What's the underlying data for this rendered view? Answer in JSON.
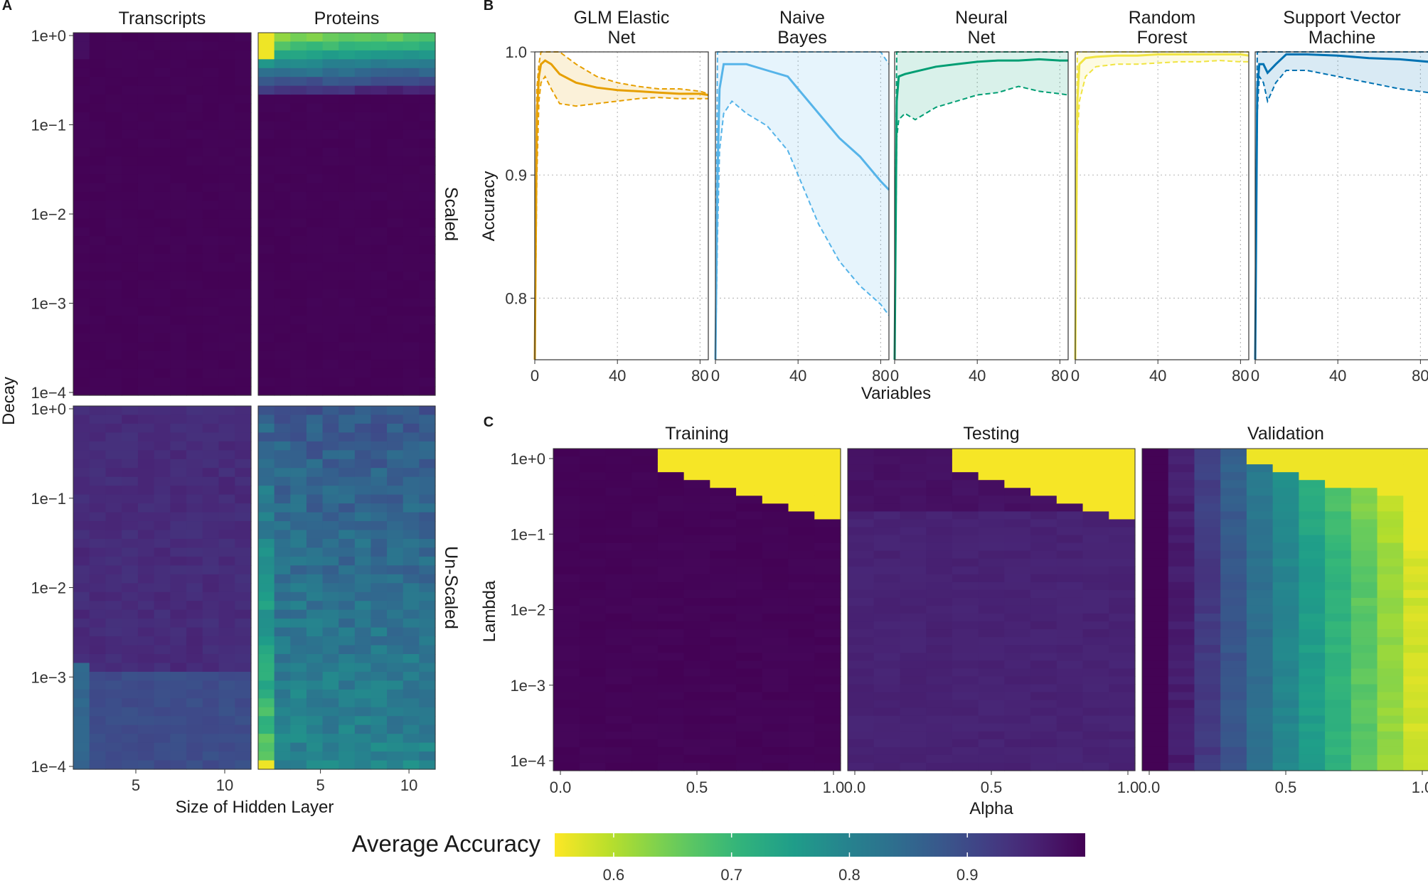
{
  "chart_data": [
    {
      "panel": "A",
      "type": "heatmap",
      "xlabel": "Size of Hidden Layer",
      "ylabel": "Decay",
      "column_facets": [
        "Transcripts",
        "Proteins"
      ],
      "row_facets": [
        "Scaled",
        "Un-Scaled"
      ],
      "x_ticks": [
        "5",
        "10"
      ],
      "x_range": [
        1,
        11
      ],
      "y_ticks": [
        "1e+0",
        "1e−1",
        "1e−2",
        "1e−3",
        "1e−4"
      ],
      "y_scale": "log10",
      "y_range": [
        0.0001,
        1
      ],
      "grid": "11 hidden-layer sizes x 41 decay values",
      "summary": {
        "Transcripts/Scaled": "accuracy ~1.0 throughout (darkest)",
        "Proteins/Scaled": "accuracy ~0.6-0.75 at decay 0.3-1 with small hidden layers, ~1.0 below decay 0.1",
        "Transcripts/Un-Scaled": "accuracy ~0.93-0.96, ~0.88-0.9 below decay 1e-3",
        "Proteins/Un-Scaled": "accuracy ~0.75-0.9, lowest (~0.6) at hidden size 1 and decay 1e-4"
      }
    },
    {
      "panel": "B",
      "type": "line",
      "xlabel": "Variables",
      "ylabel": "Accuracy",
      "x_ticks": [
        "0",
        "40",
        "80"
      ],
      "y_ticks": [
        "0.8",
        "0.9",
        "1.0"
      ],
      "xlim": [
        0,
        84
      ],
      "ylim": [
        0.75,
        1.0
      ],
      "grid": true,
      "series_style": "solid line = mean accuracy, dashed line = lower bound, shaded band between",
      "series": [
        {
          "name": "GLM Elastic\nNet",
          "color": "#E69F00",
          "x": [
            0,
            1,
            2,
            3,
            5,
            8,
            12,
            20,
            30,
            40,
            50,
            60,
            70,
            80,
            84
          ],
          "mean": [
            0.75,
            0.95,
            0.98,
            0.99,
            0.993,
            0.99,
            0.982,
            0.975,
            0.971,
            0.969,
            0.968,
            0.967,
            0.966,
            0.966,
            0.965
          ],
          "lower": [
            0.75,
            0.9,
            0.96,
            0.975,
            0.98,
            0.97,
            0.958,
            0.956,
            0.958,
            0.96,
            0.962,
            0.963,
            0.962,
            0.962,
            0.962
          ],
          "upper": [
            0.75,
            0.97,
            0.99,
            1.0,
            1.0,
            1.0,
            1.0,
            0.99,
            0.98,
            0.975,
            0.972,
            0.97,
            0.97,
            0.968,
            0.966
          ]
        },
        {
          "name": "Naive\nBayes",
          "color": "#56B4E9",
          "x": [
            0,
            1,
            2,
            4,
            8,
            15,
            25,
            35,
            40,
            50,
            60,
            70,
            80,
            84
          ],
          "mean": [
            0.75,
            0.9,
            0.97,
            0.99,
            0.99,
            0.99,
            0.985,
            0.98,
            0.97,
            0.95,
            0.93,
            0.915,
            0.895,
            0.888
          ],
          "lower": [
            0.75,
            0.85,
            0.92,
            0.95,
            0.96,
            0.95,
            0.94,
            0.92,
            0.9,
            0.86,
            0.83,
            0.81,
            0.795,
            0.786
          ],
          "upper": [
            0.75,
            1.0,
            1.0,
            1.0,
            1.0,
            1.0,
            1.0,
            1.0,
            1.0,
            1.0,
            1.0,
            1.0,
            1.0,
            0.99
          ]
        },
        {
          "name": "Neural\nNet",
          "color": "#009E73",
          "x": [
            0,
            1,
            2,
            5,
            10,
            20,
            30,
            40,
            50,
            60,
            70,
            80,
            84
          ],
          "mean": [
            0.75,
            0.96,
            0.98,
            0.982,
            0.984,
            0.988,
            0.99,
            0.992,
            0.993,
            0.993,
            0.994,
            0.993,
            0.993
          ],
          "lower": [
            0.75,
            0.93,
            0.945,
            0.95,
            0.945,
            0.955,
            0.96,
            0.965,
            0.967,
            0.972,
            0.968,
            0.966,
            0.965
          ],
          "upper": [
            0.75,
            1.0,
            1.0,
            1.0,
            1.0,
            1.0,
            1.0,
            1.0,
            1.0,
            1.0,
            1.0,
            1.0,
            1.0
          ]
        },
        {
          "name": "Random\nForest",
          "color": "#F0E442",
          "x": [
            0,
            1,
            2,
            5,
            10,
            20,
            30,
            40,
            50,
            60,
            70,
            80,
            84
          ],
          "mean": [
            0.75,
            0.96,
            0.99,
            0.995,
            0.996,
            0.997,
            0.997,
            0.998,
            0.998,
            0.998,
            0.998,
            0.998,
            0.997
          ],
          "lower": [
            0.75,
            0.93,
            0.96,
            0.98,
            0.988,
            0.99,
            0.99,
            0.991,
            0.992,
            0.992,
            0.993,
            0.992,
            0.992
          ],
          "upper": [
            0.75,
            1.0,
            1.0,
            1.0,
            1.0,
            1.0,
            1.0,
            1.0,
            1.0,
            1.0,
            1.0,
            1.0,
            1.0
          ]
        },
        {
          "name": "Support Vector\nMachine",
          "color": "#0072B2",
          "x": [
            0,
            1,
            2,
            4,
            6,
            10,
            15,
            25,
            40,
            55,
            70,
            84
          ],
          "mean": [
            0.75,
            0.97,
            0.99,
            0.99,
            0.983,
            0.99,
            0.998,
            0.998,
            0.997,
            0.995,
            0.994,
            0.992
          ],
          "lower": [
            0.75,
            0.95,
            0.98,
            0.975,
            0.96,
            0.975,
            0.985,
            0.985,
            0.98,
            0.975,
            0.97,
            0.967
          ],
          "upper": [
            0.75,
            1.0,
            1.0,
            1.0,
            1.0,
            1.0,
            1.0,
            1.0,
            1.0,
            1.0,
            1.0,
            1.0
          ]
        }
      ]
    },
    {
      "panel": "C",
      "type": "heatmap",
      "xlabel": "Alpha",
      "ylabel": "Lambda",
      "column_facets": [
        "Training",
        "Testing",
        "Validation"
      ],
      "x_ticks": [
        "0.0",
        "0.5",
        "1.0"
      ],
      "x_range": [
        0,
        1
      ],
      "y_ticks": [
        "1e+0",
        "1e−1",
        "1e−2",
        "1e−3",
        "1e−4"
      ],
      "y_scale": "log10",
      "y_range": [
        0.0001,
        1
      ],
      "grid": "11 alpha values x 41 lambda values",
      "summary": {
        "Training": "accuracy ~1.0 except top-right triangle (large lambda, large alpha) at ~0.55",
        "Testing": "accuracy ~0.96-0.97 except top-right triangle at ~0.55",
        "Validation": "accuracy falls from ~1.0 at alpha 0 to ~0.55-0.65 at alpha 1"
      }
    },
    {
      "panel": "legend",
      "type": "colorbar",
      "title": "Average Accuracy",
      "range": [
        0.55,
        1.0
      ],
      "ticks": [
        "0.6",
        "0.7",
        "0.8",
        "0.9"
      ],
      "colormap": "viridis (reversed: yellow = low, dark purple = high)"
    }
  ]
}
